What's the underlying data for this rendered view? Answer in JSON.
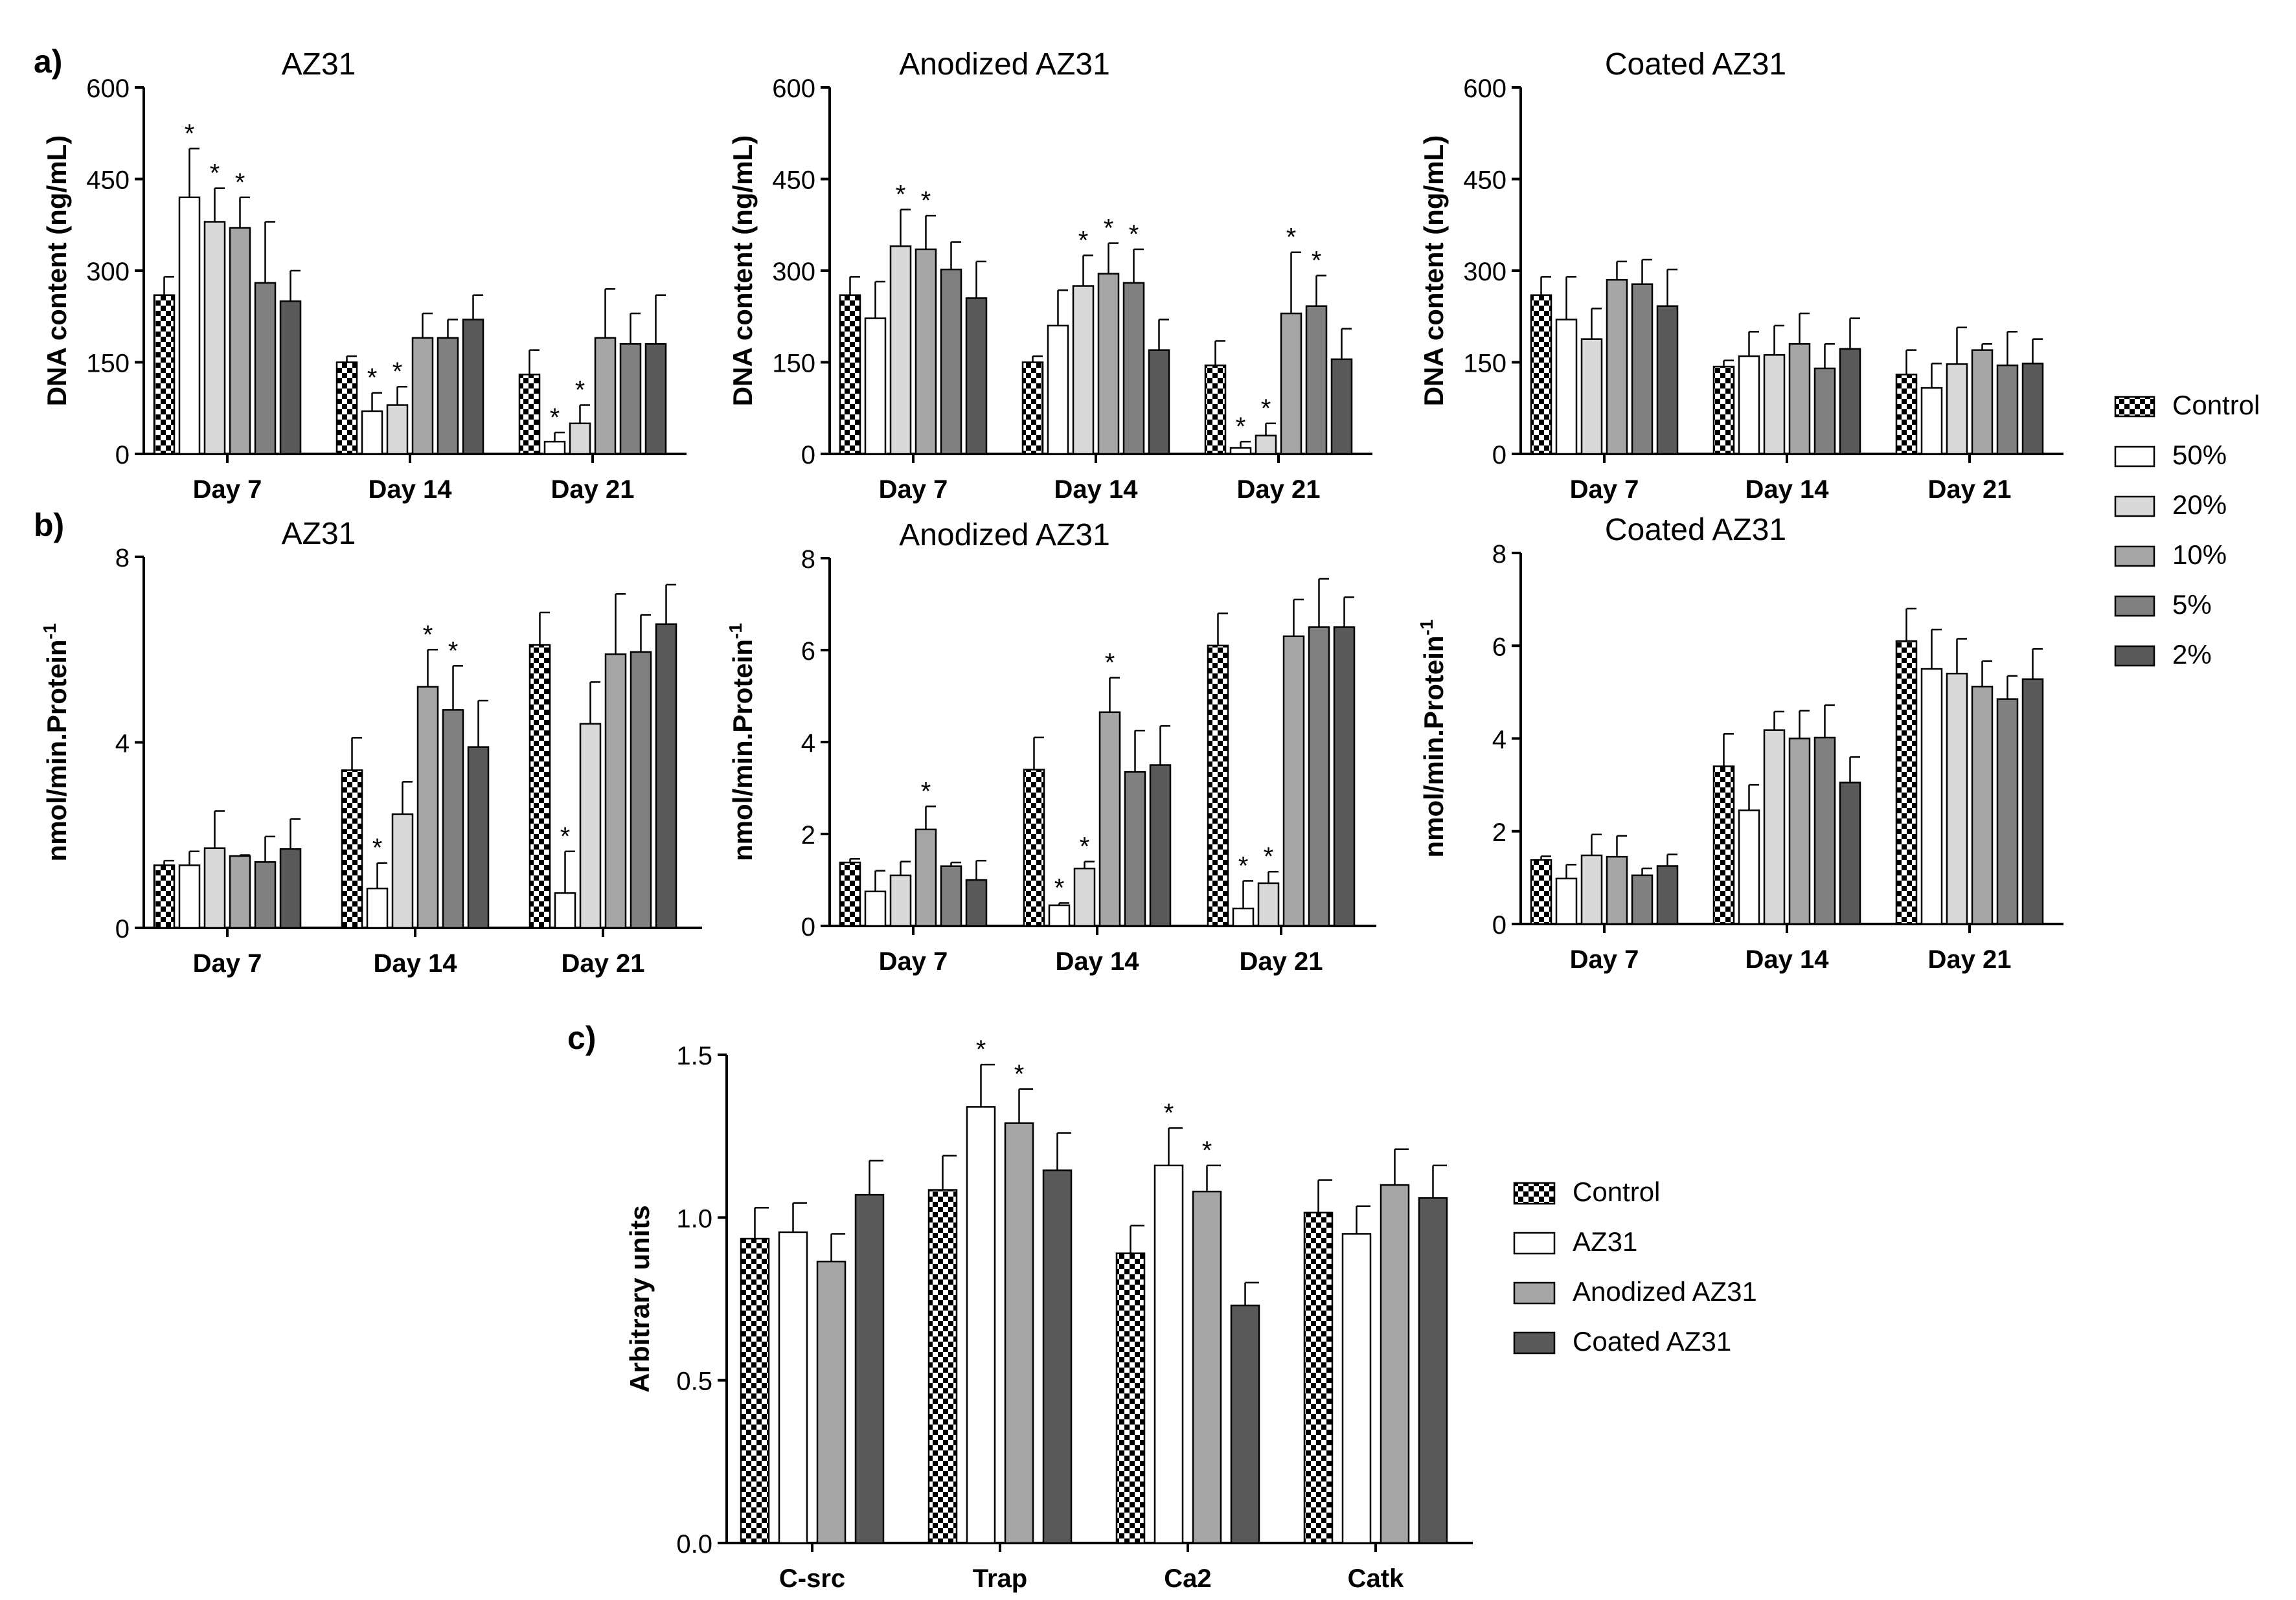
{
  "panel_labels": [
    "a)",
    "b)",
    "c)"
  ],
  "colors": {
    "50%": "#ffffff",
    "20%": "#d9d9d9",
    "10%": "#a6a6a6",
    "5%": "#808080",
    "2%": "#595959",
    "AZ31": "#ffffff",
    "Anodized AZ31": "#a6a6a6",
    "Coated AZ31": "#595959",
    "control_pattern": "checkerboard"
  },
  "legend_ab": {
    "position": "right",
    "entries": [
      "Control",
      "50%",
      "20%",
      "10%",
      "5%",
      "2%"
    ]
  },
  "legend_c": {
    "position": "right",
    "entries": [
      "Control",
      "AZ31",
      "Anodized AZ31",
      "Coated AZ31"
    ]
  },
  "chart_data": [
    {
      "panel": "a)",
      "type": "bar",
      "title": "AZ31",
      "ylabel": "DNA content (ng/mL)",
      "ylim": [
        0,
        600
      ],
      "yticks": [
        "0",
        "150",
        "300",
        "450",
        "600"
      ],
      "categories": [
        "Day 7",
        "Day 14",
        "Day 21"
      ],
      "series": [
        {
          "name": "Control",
          "values": [
            260,
            150,
            130
          ],
          "errors": [
            30,
            10,
            40
          ],
          "sig": [
            false,
            false,
            false
          ]
        },
        {
          "name": "50%",
          "values": [
            420,
            70,
            20
          ],
          "errors": [
            80,
            30,
            15
          ],
          "sig": [
            true,
            true,
            true
          ]
        },
        {
          "name": "20%",
          "values": [
            380,
            80,
            50
          ],
          "errors": [
            55,
            30,
            30
          ],
          "sig": [
            true,
            true,
            true
          ]
        },
        {
          "name": "10%",
          "values": [
            370,
            190,
            190
          ],
          "errors": [
            50,
            40,
            80
          ],
          "sig": [
            true,
            false,
            false
          ]
        },
        {
          "name": "5%",
          "values": [
            280,
            190,
            180
          ],
          "errors": [
            100,
            30,
            50
          ],
          "sig": [
            false,
            false,
            false
          ]
        },
        {
          "name": "2%",
          "values": [
            250,
            220,
            180
          ],
          "errors": [
            50,
            40,
            80
          ],
          "sig": [
            false,
            false,
            false
          ]
        }
      ]
    },
    {
      "panel": "a)",
      "type": "bar",
      "title": "Anodized AZ31",
      "ylabel": "DNA content (ng/mL)",
      "ylim": [
        0,
        600
      ],
      "yticks": [
        "0",
        "150",
        "300",
        "450",
        "600"
      ],
      "categories": [
        "Day 7",
        "Day 14",
        "Day 21"
      ],
      "series": [
        {
          "name": "Control",
          "values": [
            260,
            150,
            145
          ],
          "errors": [
            30,
            10,
            40
          ],
          "sig": [
            false,
            false,
            false
          ]
        },
        {
          "name": "50%",
          "values": [
            222,
            210,
            10
          ],
          "errors": [
            60,
            58,
            10
          ],
          "sig": [
            false,
            false,
            true
          ]
        },
        {
          "name": "20%",
          "values": [
            340,
            275,
            30
          ],
          "errors": [
            60,
            50,
            20
          ],
          "sig": [
            true,
            true,
            true
          ]
        },
        {
          "name": "10%",
          "values": [
            335,
            295,
            230
          ],
          "errors": [
            55,
            50,
            100
          ],
          "sig": [
            true,
            true,
            true
          ]
        },
        {
          "name": "5%",
          "values": [
            302,
            280,
            242
          ],
          "errors": [
            45,
            55,
            50
          ],
          "sig": [
            false,
            true,
            true
          ]
        },
        {
          "name": "2%",
          "values": [
            255,
            170,
            155
          ],
          "errors": [
            60,
            50,
            50
          ],
          "sig": [
            false,
            false,
            false
          ]
        }
      ]
    },
    {
      "panel": "a)",
      "type": "bar",
      "title": "Coated AZ31",
      "ylabel": "DNA content (ng/mL)",
      "ylim": [
        0,
        600
      ],
      "yticks": [
        "0",
        "150",
        "300",
        "450",
        "600"
      ],
      "categories": [
        "Day 7",
        "Day 14",
        "Day 21"
      ],
      "series": [
        {
          "name": "Control",
          "values": [
            260,
            143,
            130
          ],
          "errors": [
            30,
            10,
            40
          ],
          "sig": [
            false,
            false,
            false
          ]
        },
        {
          "name": "50%",
          "values": [
            220,
            160,
            108
          ],
          "errors": [
            70,
            40,
            40
          ],
          "sig": [
            false,
            false,
            false
          ]
        },
        {
          "name": "20%",
          "values": [
            188,
            162,
            147
          ],
          "errors": [
            50,
            48,
            60
          ],
          "sig": [
            false,
            false,
            false
          ]
        },
        {
          "name": "10%",
          "values": [
            285,
            180,
            170
          ],
          "errors": [
            30,
            50,
            10
          ],
          "sig": [
            false,
            false,
            false
          ]
        },
        {
          "name": "5%",
          "values": [
            278,
            140,
            145
          ],
          "errors": [
            40,
            40,
            55
          ],
          "sig": [
            false,
            false,
            false
          ]
        },
        {
          "name": "2%",
          "values": [
            242,
            172,
            148
          ],
          "errors": [
            60,
            50,
            40
          ],
          "sig": [
            false,
            false,
            false
          ]
        }
      ]
    },
    {
      "panel": "b)",
      "type": "bar",
      "title": "AZ31",
      "ylabel": "nmol/min.Protein",
      "ylabel_sup": "-1",
      "ylim": [
        0,
        8
      ],
      "yticks": [
        "0",
        "4",
        "8"
      ],
      "categories": [
        "Day 7",
        "Day 14",
        "Day 21"
      ],
      "series": [
        {
          "name": "Control",
          "values": [
            1.35,
            3.4,
            6.1
          ],
          "errors": [
            0.1,
            0.7,
            0.7
          ],
          "sig": [
            false,
            false,
            false
          ]
        },
        {
          "name": "50%",
          "values": [
            1.35,
            0.85,
            0.75
          ],
          "errors": [
            0.3,
            0.55,
            0.9
          ],
          "sig": [
            false,
            true,
            true
          ]
        },
        {
          "name": "20%",
          "values": [
            1.72,
            2.45,
            4.4
          ],
          "errors": [
            0.8,
            0.7,
            0.9
          ],
          "sig": [
            false,
            false,
            false
          ]
        },
        {
          "name": "10%",
          "values": [
            1.55,
            5.2,
            5.9
          ],
          "errors": [
            0.02,
            0.8,
            1.3
          ],
          "sig": [
            false,
            true,
            false
          ]
        },
        {
          "name": "5%",
          "values": [
            1.42,
            4.7,
            5.95
          ],
          "errors": [
            0.55,
            0.95,
            0.8
          ],
          "sig": [
            false,
            true,
            false
          ]
        },
        {
          "name": "2%",
          "values": [
            1.7,
            3.9,
            6.55
          ],
          "errors": [
            0.65,
            1.0,
            0.85
          ],
          "sig": [
            false,
            false,
            false
          ]
        }
      ]
    },
    {
      "panel": "b)",
      "type": "bar",
      "title": "Anodized AZ31",
      "ylabel": "nmol/min.Protein",
      "ylabel_sup": "-1",
      "ylim": [
        0,
        8
      ],
      "yticks": [
        "0",
        "2",
        "4",
        "6",
        "8"
      ],
      "categories": [
        "Day 7",
        "Day 14",
        "Day 21"
      ],
      "series": [
        {
          "name": "Control",
          "values": [
            1.38,
            3.4,
            6.1
          ],
          "errors": [
            0.08,
            0.7,
            0.7
          ],
          "sig": [
            false,
            false,
            false
          ]
        },
        {
          "name": "50%",
          "values": [
            0.75,
            0.45,
            0.38
          ],
          "errors": [
            0.45,
            0.05,
            0.6
          ],
          "sig": [
            false,
            true,
            true
          ]
        },
        {
          "name": "20%",
          "values": [
            1.1,
            1.25,
            0.93
          ],
          "errors": [
            0.3,
            0.15,
            0.25
          ],
          "sig": [
            false,
            true,
            true
          ]
        },
        {
          "name": "10%",
          "values": [
            2.1,
            4.65,
            6.3
          ],
          "errors": [
            0.5,
            0.75,
            0.8
          ],
          "sig": [
            true,
            true,
            false
          ]
        },
        {
          "name": "5%",
          "values": [
            1.3,
            3.35,
            6.5
          ],
          "errors": [
            0.08,
            0.9,
            1.05
          ],
          "sig": [
            false,
            false,
            false
          ]
        },
        {
          "name": "2%",
          "values": [
            1.0,
            3.5,
            6.5
          ],
          "errors": [
            0.42,
            0.85,
            0.65
          ],
          "sig": [
            false,
            false,
            false
          ]
        }
      ]
    },
    {
      "panel": "b)",
      "type": "bar",
      "title": "Coated AZ31",
      "ylabel": "nmol/min.Protein",
      "ylabel_sup": "-1",
      "ylim": [
        0,
        8
      ],
      "yticks": [
        "0",
        "2",
        "4",
        "6",
        "8"
      ],
      "categories": [
        "Day 7",
        "Day 14",
        "Day 21"
      ],
      "series": [
        {
          "name": "Control",
          "values": [
            1.38,
            3.4,
            6.1
          ],
          "errors": [
            0.08,
            0.7,
            0.7
          ],
          "sig": [
            false,
            false,
            false
          ]
        },
        {
          "name": "50%",
          "values": [
            0.98,
            2.45,
            5.5
          ],
          "errors": [
            0.3,
            0.55,
            0.85
          ],
          "sig": [
            false,
            false,
            false
          ]
        },
        {
          "name": "20%",
          "values": [
            1.48,
            4.18,
            5.4
          ],
          "errors": [
            0.45,
            0.4,
            0.75
          ],
          "sig": [
            false,
            false,
            false
          ]
        },
        {
          "name": "10%",
          "values": [
            1.45,
            4.0,
            5.12
          ],
          "errors": [
            0.45,
            0.6,
            0.55
          ],
          "sig": [
            false,
            false,
            false
          ]
        },
        {
          "name": "5%",
          "values": [
            1.05,
            4.02,
            4.85
          ],
          "errors": [
            0.15,
            0.7,
            0.5
          ],
          "sig": [
            false,
            false,
            false
          ]
        },
        {
          "name": "2%",
          "values": [
            1.25,
            3.05,
            5.28
          ],
          "errors": [
            0.25,
            0.55,
            0.65
          ],
          "sig": [
            false,
            false,
            false
          ]
        }
      ]
    },
    {
      "panel": "c)",
      "type": "bar",
      "title": "",
      "ylabel": "Arbitrary units",
      "ylim": [
        0,
        1.5
      ],
      "yticks": [
        "0.0",
        "0.5",
        "1.0",
        "1.5"
      ],
      "categories": [
        "C-src",
        "Trap",
        "Ca2",
        "Catk"
      ],
      "series": [
        {
          "name": "Control",
          "values": [
            0.935,
            1.085,
            0.89,
            1.015
          ],
          "errors": [
            0.095,
            0.105,
            0.085,
            0.1
          ],
          "sig": [
            false,
            false,
            false,
            false
          ]
        },
        {
          "name": "AZ31",
          "values": [
            0.955,
            1.34,
            1.16,
            0.95
          ],
          "errors": [
            0.09,
            0.13,
            0.115,
            0.085
          ],
          "sig": [
            false,
            true,
            true,
            false
          ]
        },
        {
          "name": "Anodized AZ31",
          "values": [
            0.865,
            1.29,
            1.08,
            1.1
          ],
          "errors": [
            0.085,
            0.105,
            0.08,
            0.11
          ],
          "sig": [
            false,
            true,
            true,
            false
          ]
        },
        {
          "name": "Coated AZ31",
          "values": [
            1.07,
            1.145,
            0.73,
            1.06
          ],
          "errors": [
            0.105,
            0.115,
            0.07,
            0.1
          ],
          "sig": [
            false,
            false,
            false,
            false
          ]
        }
      ]
    }
  ]
}
